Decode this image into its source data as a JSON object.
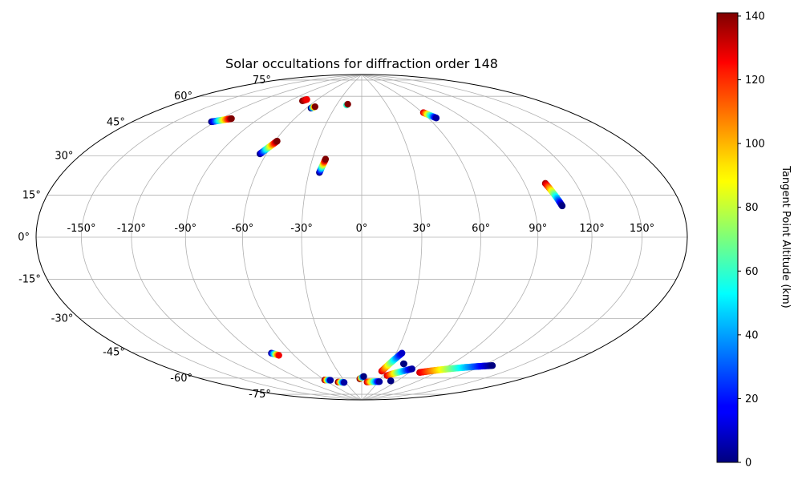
{
  "chart_data": {
    "type": "scatter",
    "projection": "hammer",
    "title": "Solar occultations for diffraction order 148",
    "lon_ticks": [
      "-150°",
      "-120°",
      "-90°",
      "-60°",
      "-30°",
      "0°",
      "30°",
      "60°",
      "90°",
      "120°",
      "150°"
    ],
    "lon_tick_values": [
      -150,
      -120,
      -90,
      -60,
      -30,
      0,
      30,
      60,
      90,
      120,
      150
    ],
    "lat_ticks": [
      "-75°",
      "-60°",
      "-45°",
      "-30°",
      "-15°",
      "0°",
      "15°",
      "30°",
      "45°",
      "60°",
      "75°"
    ],
    "lat_tick_values": [
      -75,
      -60,
      -45,
      -30,
      -15,
      0,
      15,
      30,
      45,
      60,
      75
    ],
    "grid": true,
    "colormap": "jet",
    "colorbar": {
      "label": "Tangent Point Altitude (km)",
      "min": 0,
      "max": 141,
      "ticks": [
        0,
        20,
        40,
        60,
        80,
        100,
        120,
        140
      ],
      "tick_labels": [
        "0",
        "20",
        "40",
        "60",
        "80",
        "100",
        "120",
        "140"
      ],
      "placement": "right"
    },
    "tracks": [
      {
        "lon_start": -123,
        "lat_start": 53.5,
        "lon_end": -112,
        "lat_end": 56.5,
        "alt_start": 0,
        "alt_end": 141
      },
      {
        "lon_start": -75.5,
        "lat_start": 70.5,
        "lon_end": -73,
        "lat_end": 71.5,
        "alt_start": 141,
        "alt_end": 125
      },
      {
        "lon_start": -55,
        "lat_start": 67,
        "lon_end": -52.5,
        "lat_end": 68,
        "alt_start": 0,
        "alt_end": 141
      },
      {
        "lon_start": -64,
        "lat_start": 41,
        "lon_end": -58.5,
        "lat_end": 48,
        "alt_start": 0,
        "alt_end": 141
      },
      {
        "lon_start": -24,
        "lat_start": 32.5,
        "lon_end": -22,
        "lat_end": 39.5,
        "alt_start": 0,
        "alt_end": 141
      },
      {
        "lon_start": -18,
        "lat_start": 70,
        "lon_end": -17,
        "lat_end": 70.5,
        "alt_start": 60,
        "alt_end": 141
      },
      {
        "lon_start": 61,
        "lat_start": 64,
        "lon_end": 67,
        "lat_end": 60.5,
        "alt_start": 130,
        "alt_end": 5
      },
      {
        "lon_start": 102,
        "lat_start": 24.5,
        "lon_end": 106,
        "lat_end": 14,
        "alt_start": 135,
        "alt_end": 0
      },
      {
        "lon_start": -77,
        "lat_start": -58,
        "lon_end": -73,
        "lat_end": -59.5,
        "alt_start": 5,
        "alt_end": 125
      },
      {
        "lon_start": -60,
        "lat_start": -75.5,
        "lon_end": -52,
        "lat_end": -76,
        "alt_start": 140,
        "alt_end": 5
      },
      {
        "lon_start": -43,
        "lat_start": -77.5,
        "lon_end": -33,
        "lat_end": -78,
        "alt_start": 140,
        "alt_end": 5
      },
      {
        "lon_start": -3,
        "lat_start": -76,
        "lon_end": 3,
        "lat_end": -74.5,
        "alt_start": 140,
        "alt_end": 0
      },
      {
        "lon_start": 10,
        "lat_start": -78,
        "lon_end": 32,
        "lat_end": -77.5,
        "alt_start": 130,
        "alt_end": 5
      },
      {
        "lon_start": 25,
        "lat_start": -71,
        "lon_end": 35,
        "lat_end": -60,
        "alt_start": 130,
        "alt_end": 10
      },
      {
        "lon_start": 36,
        "lat_start": -73.5,
        "lon_end": 58,
        "lat_end": -68.5,
        "alt_start": 130,
        "alt_end": 5
      },
      {
        "lon_start": 44,
        "lat_start": -66,
        "lon_end": 43.5,
        "lat_end": -66,
        "alt_start": 0,
        "alt_end": 0
      },
      {
        "lon_start": 50,
        "lat_start": -76.5,
        "lon_end": 49.5,
        "lat_end": -76.5,
        "alt_start": 0,
        "alt_end": 0
      },
      {
        "lon_start": 72,
        "lat_start": -70,
        "lon_end": 128,
        "lat_end": -60.5,
        "alt_start": 130,
        "alt_end": 0
      }
    ]
  }
}
